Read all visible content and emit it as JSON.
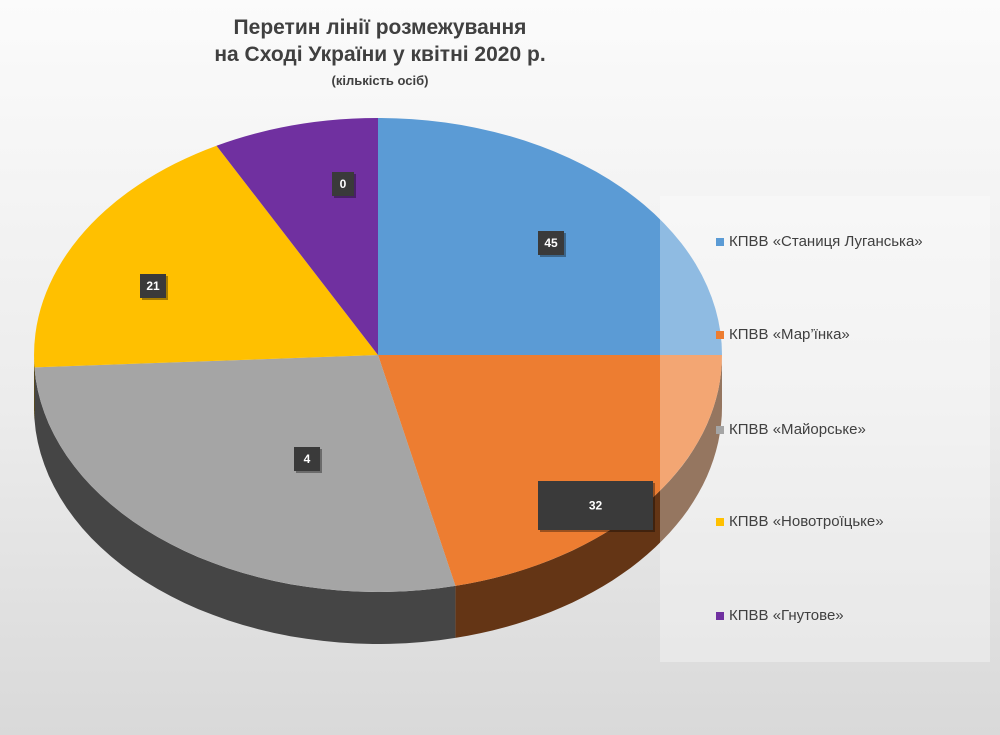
{
  "chart_data": {
    "type": "pie",
    "title_lines": [
      "Перетин лінії розмежування",
      "на Сході України у квітні 2020 р."
    ],
    "subtitle": "(кількість осіб)",
    "legend_position": "right",
    "slices": [
      {
        "name": "КПВВ «Станиця Луганська»",
        "value": 45,
        "color": "#5b9bd5"
      },
      {
        "name": "КПВВ «Мар’їнка»",
        "value": 32,
        "color": "#ed7d31"
      },
      {
        "name": "КПВВ «Майорське»",
        "value": 4,
        "color": "#a5a5a5"
      },
      {
        "name": "КПВВ «Новотроїцьке»",
        "value": 21,
        "color": "#ffc000"
      },
      {
        "name": "КПВВ «Гнутове»",
        "value": 0,
        "color": "#7030a0"
      }
    ]
  }
}
